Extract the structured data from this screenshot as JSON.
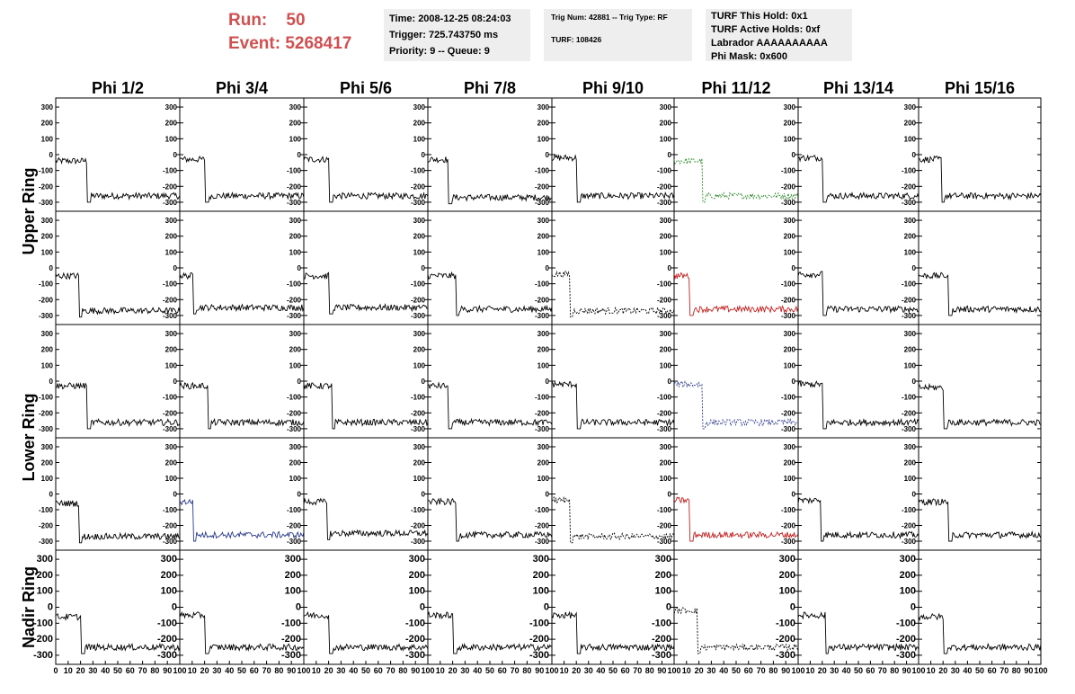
{
  "header": {
    "run_label": "Run:",
    "run_value": "50",
    "event_label": "Event:",
    "event_value": "5268417",
    "info_box_1": [
      "Time: 2008-12-25 08:24:03",
      "Trigger: 725.743750 ms",
      "Priority: 9 -- Queue: 9"
    ],
    "info_box_2": [
      "Trig Num: 42881 -- Trig Type: RF",
      "TURF: 108426"
    ],
    "info_box_3": [
      "TURF This Hold: 0x1",
      "TURF Active Holds: 0xf",
      "Labrador AAAAAAAAAA",
      "Phi Mask: 0x600"
    ]
  },
  "chart_data": {
    "type": "line",
    "columns": [
      "Phi 1/2",
      "Phi 3/4",
      "Phi 5/6",
      "Phi 7/8",
      "Phi 9/10",
      "Phi 11/12",
      "Phi 13/14",
      "Phi 15/16"
    ],
    "ring_labels": [
      "Upper Ring",
      "Lower Ring",
      "Nadir Ring"
    ],
    "rows": 5,
    "y_ticks": [
      "300",
      "200",
      "100",
      "0",
      "-100",
      "-200",
      "-300"
    ],
    "yrange": [
      -340,
      340
    ],
    "x_ticks": [
      "0",
      "10",
      "20",
      "30",
      "40",
      "50",
      "60",
      "70",
      "80",
      "90",
      "100"
    ],
    "xrange": [
      0,
      100
    ],
    "series_colors": {
      "default": "#000000",
      "green": "#2e8b2e",
      "red": "#c02020",
      "blue": "#2a3a8a"
    },
    "waveforms": [
      [
        {
          "step": 27,
          "high": -40,
          "low": -260,
          "color": "default",
          "dashed": false
        },
        {
          "step": 22,
          "high": -30,
          "low": -260,
          "color": "default",
          "dashed": false
        },
        {
          "step": 22,
          "high": -30,
          "low": -260,
          "color": "default",
          "dashed": false
        },
        {
          "step": 18,
          "high": -30,
          "low": -270,
          "color": "default",
          "dashed": false
        },
        {
          "step": 22,
          "high": -20,
          "low": -260,
          "color": "default",
          "dashed": false
        },
        {
          "step": 24,
          "high": -40,
          "low": -260,
          "color": "green",
          "dashed": true
        },
        {
          "step": 22,
          "high": -20,
          "low": -260,
          "color": "default",
          "dashed": false
        },
        {
          "step": 20,
          "high": -30,
          "low": -260,
          "color": "default",
          "dashed": false
        }
      ],
      [
        {
          "step": 20,
          "high": -50,
          "low": -270,
          "color": "default",
          "dashed": false
        },
        {
          "step": 12,
          "high": -50,
          "low": -250,
          "color": "default",
          "dashed": false
        },
        {
          "step": 22,
          "high": -50,
          "low": -250,
          "color": "default",
          "dashed": false
        },
        {
          "step": 24,
          "high": -50,
          "low": -260,
          "color": "default",
          "dashed": false
        },
        {
          "step": 16,
          "high": -40,
          "low": -270,
          "color": "default",
          "dashed": true
        },
        {
          "step": 14,
          "high": -50,
          "low": -260,
          "color": "red",
          "dashed": false
        },
        {
          "step": 22,
          "high": -40,
          "low": -260,
          "color": "default",
          "dashed": false
        },
        {
          "step": 26,
          "high": -50,
          "low": -260,
          "color": "default",
          "dashed": false
        }
      ],
      [
        {
          "step": 27,
          "high": -30,
          "low": -260,
          "color": "default",
          "dashed": false
        },
        {
          "step": 24,
          "high": -30,
          "low": -260,
          "color": "default",
          "dashed": false
        },
        {
          "step": 24,
          "high": -30,
          "low": -260,
          "color": "default",
          "dashed": false
        },
        {
          "step": 18,
          "high": -30,
          "low": -260,
          "color": "default",
          "dashed": false
        },
        {
          "step": 22,
          "high": -20,
          "low": -260,
          "color": "default",
          "dashed": false
        },
        {
          "step": 24,
          "high": -20,
          "low": -260,
          "color": "blue",
          "dashed": true
        },
        {
          "step": 22,
          "high": -20,
          "low": -260,
          "color": "default",
          "dashed": false
        },
        {
          "step": 22,
          "high": -40,
          "low": -260,
          "color": "default",
          "dashed": false
        }
      ],
      [
        {
          "step": 20,
          "high": -60,
          "low": -270,
          "color": "default",
          "dashed": false
        },
        {
          "step": 12,
          "high": -50,
          "low": -260,
          "color": "blue",
          "dashed": false
        },
        {
          "step": 20,
          "high": -50,
          "low": -250,
          "color": "default",
          "dashed": false
        },
        {
          "step": 24,
          "high": -50,
          "low": -260,
          "color": "default",
          "dashed": false
        },
        {
          "step": 16,
          "high": -40,
          "low": -270,
          "color": "default",
          "dashed": true
        },
        {
          "step": 14,
          "high": -40,
          "low": -260,
          "color": "red",
          "dashed": false
        },
        {
          "step": 20,
          "high": -40,
          "low": -260,
          "color": "default",
          "dashed": false
        },
        {
          "step": 26,
          "high": -50,
          "low": -260,
          "color": "default",
          "dashed": false
        }
      ],
      [
        {
          "step": 22,
          "high": -60,
          "low": -250,
          "color": "default",
          "dashed": false
        },
        {
          "step": 22,
          "high": -50,
          "low": -250,
          "color": "default",
          "dashed": false
        },
        {
          "step": 22,
          "high": -50,
          "low": -250,
          "color": "default",
          "dashed": false
        },
        {
          "step": 22,
          "high": -50,
          "low": -250,
          "color": "default",
          "dashed": false
        },
        {
          "step": 22,
          "high": -50,
          "low": -250,
          "color": "default",
          "dashed": false
        },
        {
          "step": 20,
          "high": -20,
          "low": -250,
          "color": "default",
          "dashed": true
        },
        {
          "step": 24,
          "high": -50,
          "low": -250,
          "color": "default",
          "dashed": false
        },
        {
          "step": 22,
          "high": -60,
          "low": -250,
          "color": "default",
          "dashed": false
        }
      ]
    ]
  }
}
